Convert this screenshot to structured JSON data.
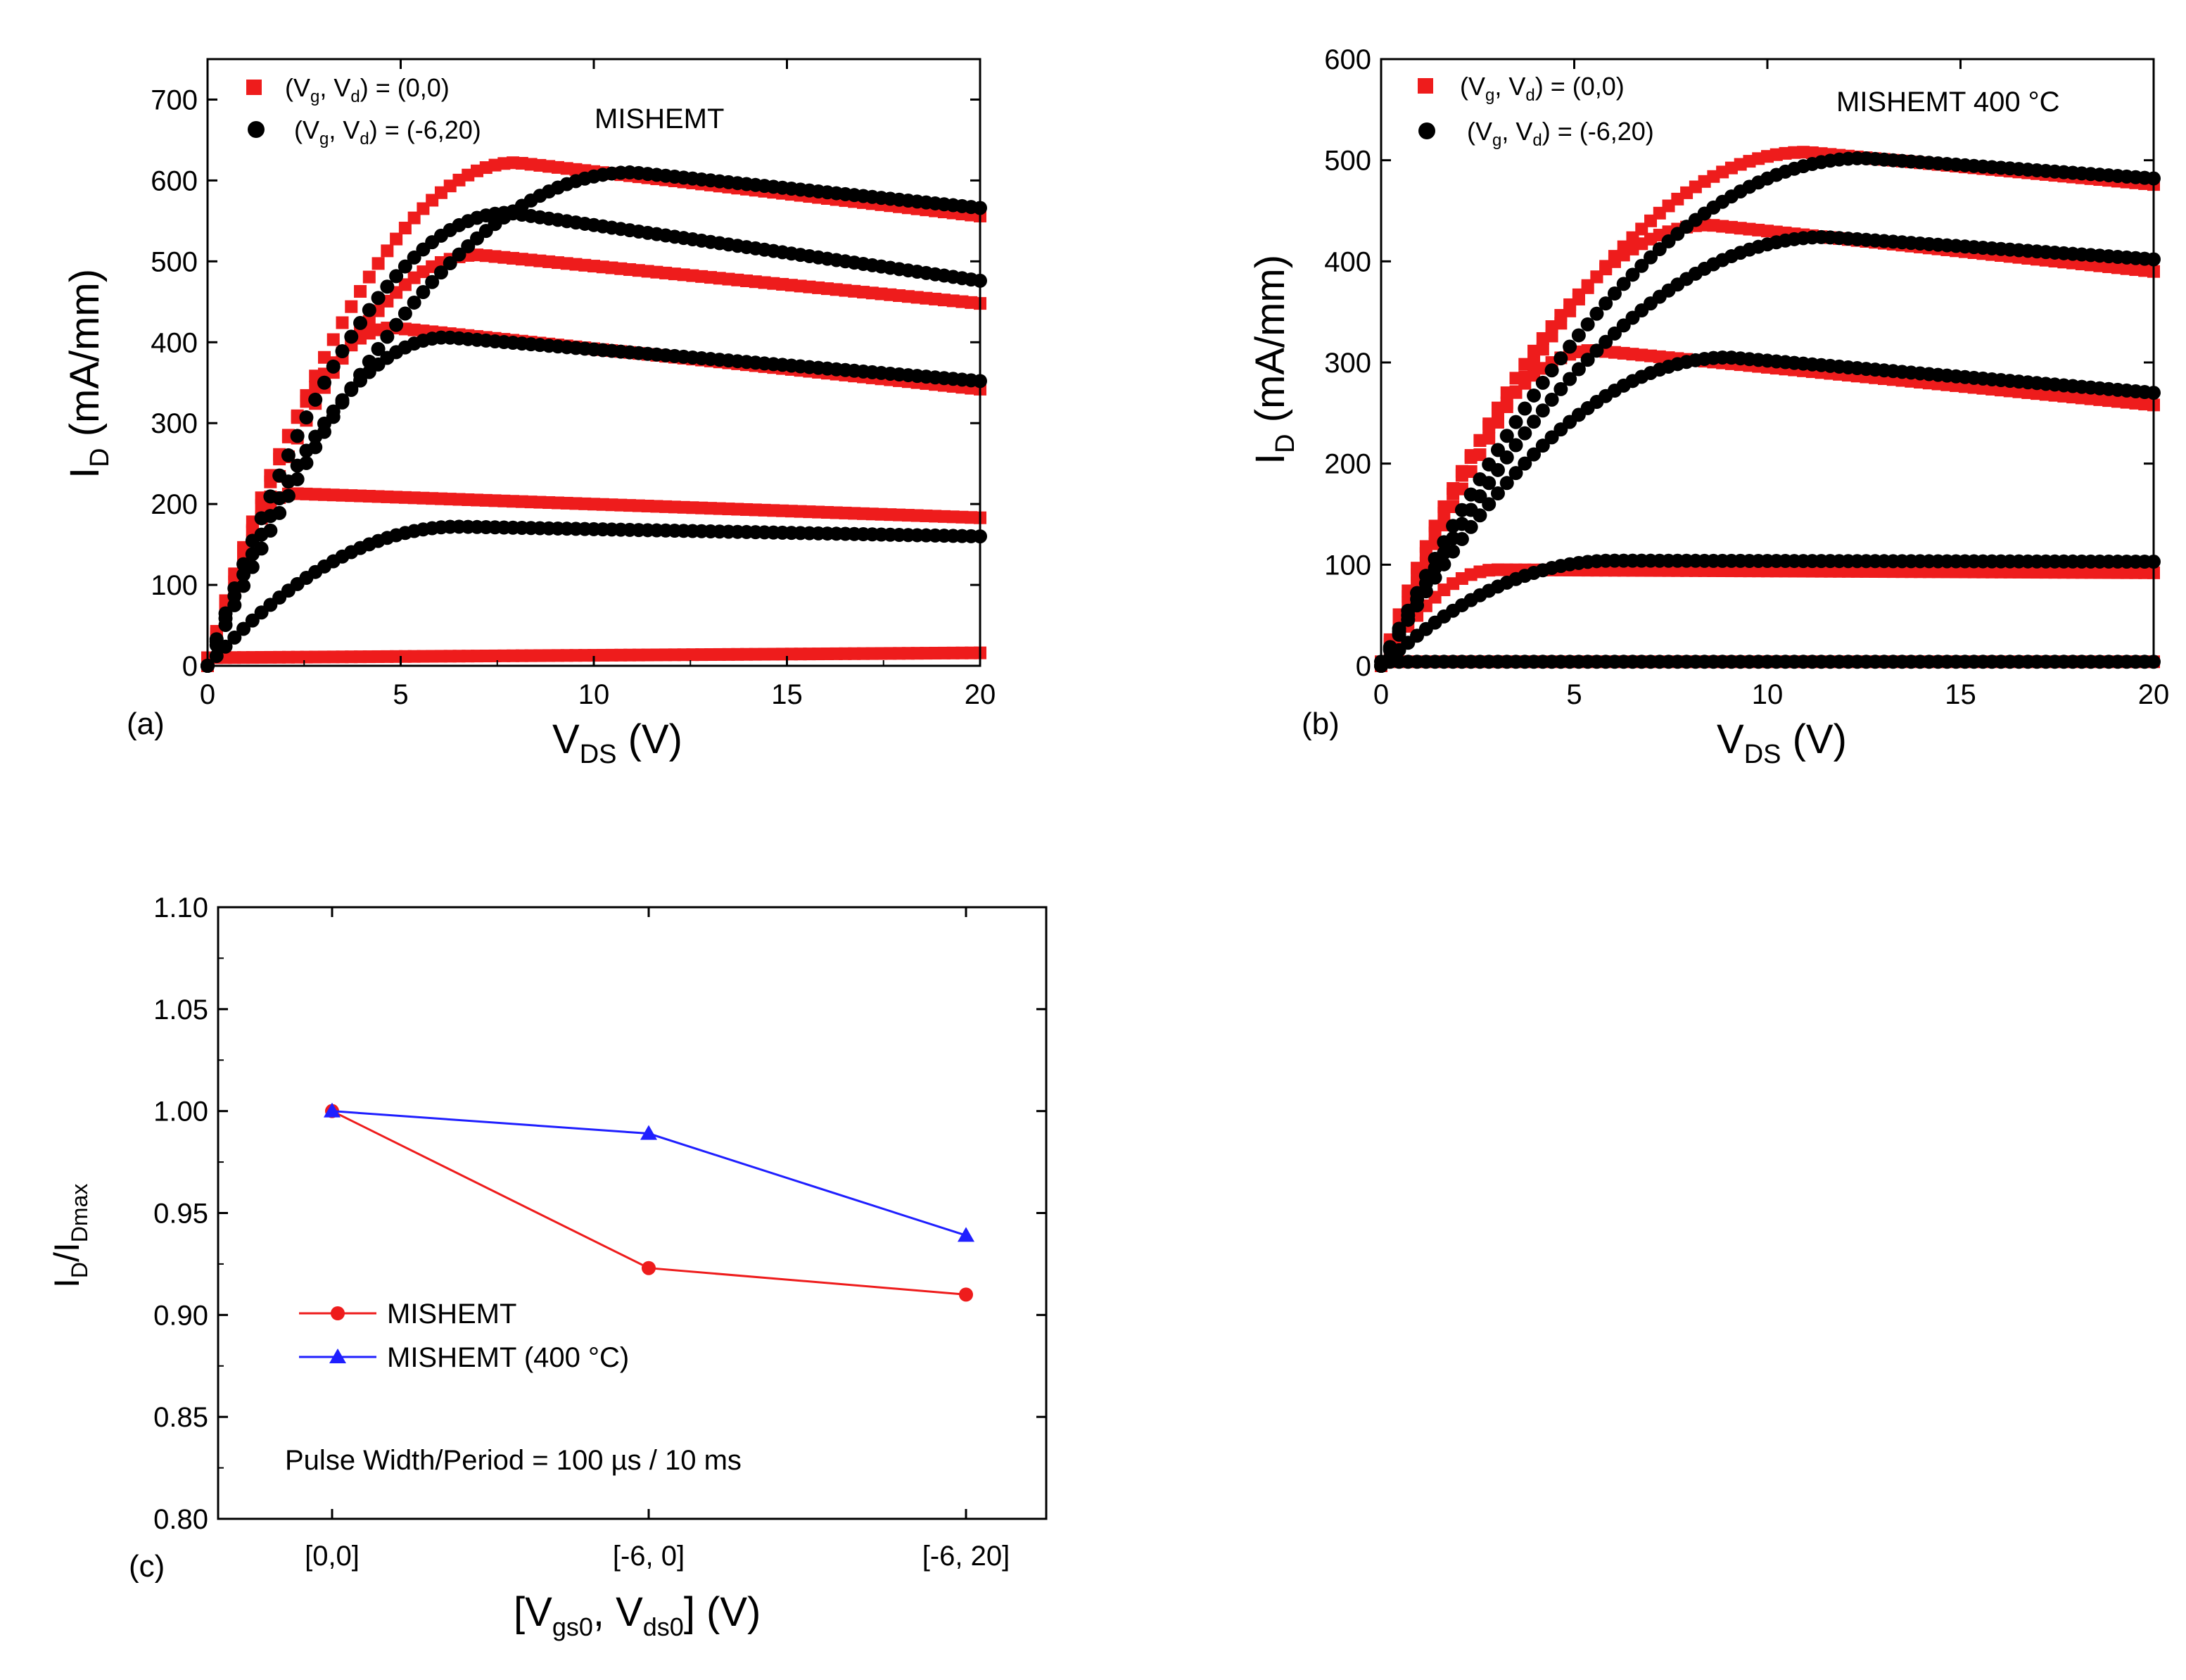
{
  "colors": {
    "red": "#ee1c1c",
    "black": "#000000",
    "blue": "#1f1fff"
  },
  "chart_data": [
    {
      "panel": "(a)",
      "type": "scatter",
      "annotation": "MISHEMT",
      "xlabel": {
        "main": "V",
        "sub": "DS",
        "rest": " (V)"
      },
      "ylabel": {
        "main": "I",
        "sub": "D",
        "rest": " (mA/mm)"
      },
      "xlim": [
        0,
        20
      ],
      "ylim": [
        0,
        750
      ],
      "xticks": [
        0,
        5,
        10,
        15,
        20
      ],
      "yticks": [
        0,
        100,
        200,
        300,
        400,
        500,
        600,
        700
      ],
      "legend": [
        {
          "symbol": "square",
          "color": "red",
          "pre": "(V",
          "s1": "g",
          "mid": ", V",
          "s2": "d",
          "post": ") = (0,0)"
        },
        {
          "symbol": "circle",
          "color": "black",
          "pre": "(V",
          "s1": "g",
          "mid": ", V",
          "s2": "d",
          "post": ") = (-6,20)"
        }
      ],
      "series": [
        {
          "name": "(Vg, Vd) = (0,0)",
          "marker": "square",
          "color": "red",
          "curves": [
            {
              "knee": 2.2,
              "peak": 213,
              "end": 183
            },
            {
              "knee": 4.8,
              "peak": 418,
              "end": 342
            },
            {
              "knee": 7.0,
              "peak": 508,
              "end": 448
            },
            {
              "knee": 8.0,
              "peak": 622,
              "end": 556
            },
            {
              "knee": 20,
              "peak": 16,
              "end": 16,
              "start": 10
            }
          ]
        },
        {
          "name": "(Vg, Vd) = (-6,20)",
          "marker": "circle",
          "color": "black",
          "curves": [
            {
              "knee": 6.5,
              "peak": 172,
              "end": 160
            },
            {
              "knee": 6.2,
              "peak": 406,
              "end": 352
            },
            {
              "knee": 7.8,
              "peak": 560,
              "end": 476
            },
            {
              "knee": 11.0,
              "peak": 610,
              "end": 566
            }
          ]
        }
      ]
    },
    {
      "panel": "(b)",
      "type": "scatter",
      "annotation": "MISHEMT 400 °C",
      "xlabel": {
        "main": "V",
        "sub": "DS",
        "rest": " (V)"
      },
      "ylabel": {
        "main": "I",
        "sub": "D",
        "rest": " (mA/mm)"
      },
      "xlim": [
        0,
        20
      ],
      "ylim": [
        0,
        600
      ],
      "xticks": [
        0,
        5,
        10,
        15,
        20
      ],
      "yticks": [
        0,
        100,
        200,
        300,
        400,
        500,
        600
      ],
      "legend": [
        {
          "symbol": "square",
          "color": "red",
          "pre": "(V",
          "s1": "g",
          "mid": ", V",
          "s2": "d",
          "post": ") = (0,0)"
        },
        {
          "symbol": "circle",
          "color": "black",
          "pre": "(V",
          "s1": "g",
          "mid": ", V",
          "s2": "d",
          "post": ") = (-6,20)"
        }
      ],
      "series": [
        {
          "name": "(Vg, Vd) = (0,0)",
          "marker": "square",
          "color": "red",
          "curves": [
            {
              "knee": 3.0,
              "peak": 95,
              "end": 92
            },
            {
              "knee": 5.5,
              "peak": 312,
              "end": 258
            },
            {
              "knee": 8.5,
              "peak": 436,
              "end": 390
            },
            {
              "knee": 11.0,
              "peak": 508,
              "end": 476
            },
            {
              "knee": 20,
              "peak": 4,
              "end": 4,
              "start": 4
            }
          ]
        },
        {
          "name": "(Vg, Vd) = (-6,20)",
          "marker": "circle",
          "color": "black",
          "curves": [
            {
              "knee": 6.0,
              "peak": 104,
              "end": 103
            },
            {
              "knee": 9.0,
              "peak": 305,
              "end": 270
            },
            {
              "knee": 11.5,
              "peak": 424,
              "end": 402
            },
            {
              "knee": 12.5,
              "peak": 502,
              "end": 482
            },
            {
              "knee": 20,
              "peak": 4,
              "end": 4,
              "start": 4
            }
          ]
        }
      ]
    },
    {
      "panel": "(c)",
      "type": "line",
      "categories": [
        "[0,0]",
        "[-6, 0]",
        "[-6, 20]"
      ],
      "ylim": [
        0.8,
        1.1
      ],
      "yticks": [
        "0.80",
        "0.85",
        "0.90",
        "0.95",
        "1.00",
        "1.05",
        "1.10"
      ],
      "xlabel": {
        "pre": "[V",
        "s1": "gs0",
        "mid": ", V",
        "s2": "ds0",
        "post": "] (V)"
      },
      "ylabel": {
        "pre": "I",
        "s1": "D",
        "mid": "/I",
        "s2": "Dmax"
      },
      "annotation": "Pulse Width/Period = 100 µs / 10 ms",
      "series": [
        {
          "name": "MISHEMT",
          "color": "red",
          "marker": "circle",
          "values": [
            1.0,
            0.923,
            0.91
          ]
        },
        {
          "name": "MISHEMT (400 °C)",
          "color": "blue",
          "marker": "triangle",
          "values": [
            1.0,
            0.989,
            0.939
          ]
        }
      ]
    }
  ]
}
